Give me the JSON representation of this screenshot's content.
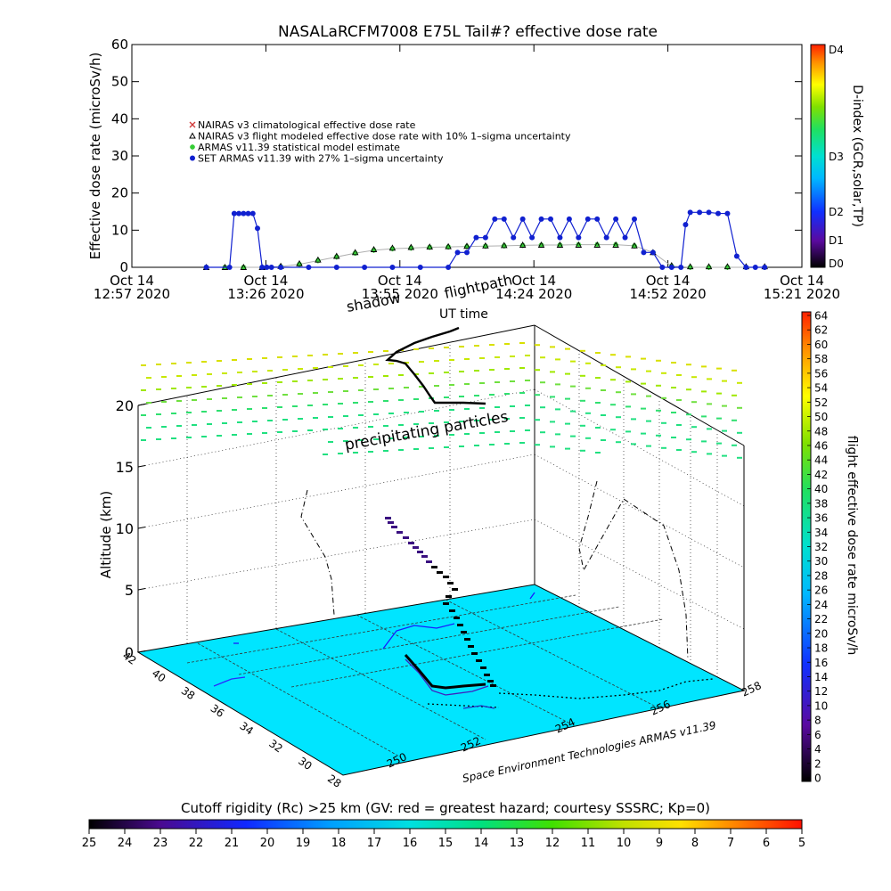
{
  "top_chart": {
    "title": "NASALaRCFM7008   E75L Tail#? effective dose rate",
    "ylabel": "Effective dose rate (microSv/h)",
    "yticks": [
      "0",
      "10",
      "20",
      "30",
      "40",
      "50",
      "60"
    ],
    "xticks": [
      {
        "l1": "Oct 14",
        "l2": "12:57 2020"
      },
      {
        "l1": "Oct 14",
        "l2": "13:26 2020"
      },
      {
        "l1": "Oct 14",
        "l2": "13:55 2020"
      },
      {
        "l1": "Oct 14",
        "l2": "14:24 2020"
      },
      {
        "l1": "Oct 14",
        "l2": "14:52 2020"
      },
      {
        "l1": "Oct 14",
        "l2": "15:21 2020"
      }
    ],
    "legend": [
      {
        "text": "NAIRAS v3 climatological effective dose rate",
        "color": "#d03a3a",
        "marker": "x"
      },
      {
        "text": "NAIRAS v3 flight modeled effective dose rate with 10% 1–sigma uncertainty",
        "color": "#000000",
        "marker": "triangle"
      },
      {
        "text": "ARMAS v11.39 statistical model estimate",
        "color": "#33cc33",
        "marker": "star"
      },
      {
        "text": "SET ARMAS v11.39 with 27% 1–sigma uncertainty",
        "color": "#1020d0",
        "marker": "dot"
      }
    ],
    "dindex_label": "D-index (GCR,solar,TP)",
    "dindex_ticks": [
      "D4",
      "D3",
      "D2",
      "D1",
      "D0"
    ]
  },
  "chart_data": {
    "type": "line",
    "title": "NASALaRCFM7008   E75L Tail#? effective dose rate",
    "xlabel": "",
    "ylabel": "Effective dose rate (microSv/h)",
    "ylim": [
      0,
      60
    ],
    "x_unit": "minutes after Oct 14 12:57 2020",
    "xlim": [
      0,
      144
    ],
    "series": [
      {
        "name": "SET ARMAS v11.39 with 27% 1–sigma uncertainty",
        "color": "#1020d0",
        "x": [
          16,
          21,
          22,
          23,
          24,
          25,
          26,
          27,
          28,
          29,
          30,
          32,
          38,
          44,
          50,
          56,
          62,
          68,
          70,
          72,
          74,
          76,
          78,
          80,
          82,
          84,
          86,
          88,
          90,
          92,
          94,
          96,
          98,
          100,
          102,
          104,
          106,
          108,
          110,
          112,
          114,
          116,
          118,
          119,
          120,
          122,
          124,
          126,
          128,
          130,
          132,
          134,
          136
        ],
        "y": [
          0,
          0,
          14.5,
          14.5,
          14.5,
          14.5,
          14.5,
          10.5,
          0,
          0,
          0,
          0,
          0,
          0,
          0,
          0,
          0,
          0,
          4,
          4,
          8,
          8,
          13,
          13,
          8,
          13,
          8,
          13,
          13,
          8,
          13,
          8,
          13,
          13,
          8,
          13,
          8,
          13,
          4,
          4,
          0,
          0,
          0,
          11.5,
          14.8,
          14.8,
          14.8,
          14.5,
          14.5,
          3,
          0,
          0,
          0
        ]
      },
      {
        "name": "NAIRAS v3 flight modeled effective dose rate with 10% 1–sigma uncertainty",
        "color": "#000000",
        "x": [
          16,
          20,
          24,
          28,
          32,
          36,
          40,
          44,
          48,
          52,
          56,
          60,
          64,
          68,
          72,
          76,
          80,
          84,
          88,
          92,
          96,
          100,
          104,
          108,
          112,
          116,
          120,
          124,
          128,
          132,
          136
        ],
        "y": [
          0,
          0,
          0,
          0,
          0.3,
          1,
          2,
          3,
          4,
          4.8,
          5.2,
          5.4,
          5.5,
          5.6,
          5.7,
          5.8,
          5.9,
          6,
          6,
          6,
          6,
          6,
          6,
          5.8,
          4,
          0.5,
          0.2,
          0.2,
          0.2,
          0.2,
          0.2
        ]
      },
      {
        "name": "ARMAS v11.39 statistical model estimate",
        "color": "#33cc33",
        "x": [
          16,
          20,
          24,
          28,
          32,
          36,
          40,
          44,
          48,
          52,
          56,
          60,
          64,
          68,
          72,
          76,
          80,
          84,
          88,
          92,
          96,
          100,
          104,
          108,
          112,
          116,
          120,
          124,
          128,
          132,
          136
        ],
        "y": [
          0,
          0,
          0,
          0,
          0.2,
          0.8,
          1.8,
          2.8,
          3.8,
          4.6,
          5,
          5.2,
          5.4,
          5.5,
          5.6,
          5.7,
          5.8,
          5.9,
          6,
          6,
          6.1,
          6.1,
          6.1,
          5.8,
          4,
          0.3,
          0,
          0,
          0,
          0,
          0
        ]
      }
    ]
  },
  "bottom_chart": {
    "annotation_shadow": "shadow",
    "annotation_flightpath": "flightpath",
    "annotation_ut": "UT time",
    "annotation_precip": "precipitating particles",
    "zlabel": "Altitude (km)",
    "zticks": [
      "0",
      "5",
      "10",
      "15",
      "20"
    ],
    "lat_ticks": [
      "42",
      "40",
      "38",
      "36",
      "34",
      "32",
      "30",
      "28"
    ],
    "lon_ticks": [
      "250",
      "252",
      "254",
      "256",
      "258"
    ],
    "credit": "Space Environment Technologies ARMAS v11.39",
    "colorbar_label": "flight effective dose rate microSv/h",
    "colorbar_ticks": [
      "64",
      "62",
      "60",
      "58",
      "56",
      "54",
      "52",
      "50",
      "48",
      "46",
      "44",
      "42",
      "40",
      "38",
      "36",
      "34",
      "32",
      "30",
      "28",
      "26",
      "24",
      "22",
      "20",
      "18",
      "16",
      "14",
      "12",
      "10",
      "8",
      "6",
      "4",
      "2",
      "0"
    ]
  },
  "cutoff_bar": {
    "title": "Cutoff rigidity (Rc) >25 km (GV: red = greatest hazard; courtesy SSSRC; Kp=0)",
    "ticks": [
      "25",
      "24",
      "23",
      "22",
      "21",
      "20",
      "19",
      "18",
      "17",
      "16",
      "15",
      "14",
      "13",
      "12",
      "11",
      "10",
      "9",
      "8",
      "7",
      "6",
      "5"
    ]
  }
}
